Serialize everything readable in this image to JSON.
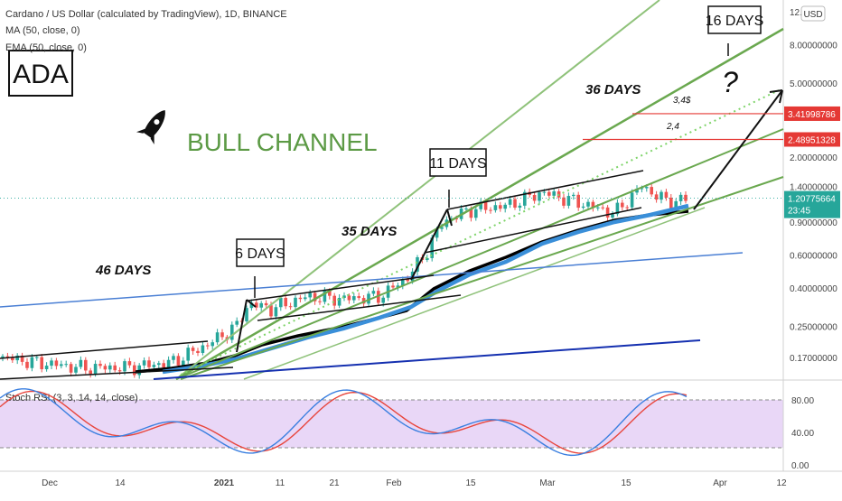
{
  "header": {
    "symbol_line": "Cardano / US Dollar (calculated by TradingView), 1D, BINANCE",
    "ma_line": "MA (50, close, 0)",
    "ema_line": "EMA (50, close, 0)"
  },
  "currency_button": "USD",
  "annotations": {
    "ticker": "ADA",
    "bull_channel": "BULL CHANNEL",
    "days_46": "46 DAYS",
    "days_6": "6 DAYS",
    "days_35": "35 DAYS",
    "days_11": "11 DAYS",
    "days_36": "36 DAYS",
    "days_16": "16 DAYS",
    "question": "?",
    "level_345": "3,4$",
    "level_24": "2,4"
  },
  "colors": {
    "up_candle": "#26a69a",
    "down_candle": "#ef5350",
    "ma_line": "#000000",
    "ema_line": "#3a8fd9",
    "channel_green": "#6aa84f",
    "red_level": "#e53935",
    "stoch_band": "#e9d7f7",
    "stoch_k": "#3a7fe0",
    "stoch_d": "#e8453c"
  },
  "price_axis": {
    "scale": "log",
    "ticks": [
      "12.0",
      "8.00000000",
      "5.00000000",
      "2.00000000",
      "1.40000000",
      "0.90000000",
      "0.60000000",
      "0.40000000",
      "0.25000000",
      "0.17000000"
    ],
    "tick_values": [
      12,
      8,
      5,
      2,
      1.4,
      0.9,
      0.6,
      0.4,
      0.25,
      0.17
    ],
    "levels": [
      {
        "label": "3.41998786",
        "value": 3.42
      },
      {
        "label": "2.48951328",
        "value": 2.49
      }
    ],
    "current": {
      "label": "1.20775664",
      "countdown": "23:45",
      "value": 1.2078
    }
  },
  "stoch_axis": {
    "ticks": [
      "80.00",
      "40.00",
      "0.00"
    ],
    "values": [
      80,
      40,
      0
    ]
  },
  "time_axis": [
    "Dec",
    "14",
    "2021",
    "11",
    "21",
    "Feb",
    "15",
    "Mar",
    "15",
    "Apr",
    "12"
  ],
  "chart_data": {
    "type": "line",
    "title": "Cardano / US Dollar (calculated by TradingView), 1D, BINANCE",
    "yscale": "log",
    "ylim": [
      0.13,
      12
    ],
    "series": [
      {
        "name": "MA (50, close, 0)",
        "x": [
          "Dec",
          "14",
          "2021",
          "11",
          "21",
          "Feb",
          "15",
          "Mar",
          "15"
        ],
        "values": [
          0.14,
          0.15,
          0.17,
          0.22,
          0.27,
          0.34,
          0.6,
          0.85,
          1.02
        ]
      },
      {
        "name": "EMA (50, close, 0)",
        "x": [
          "Dec",
          "14",
          "2021",
          "11",
          "21",
          "Feb",
          "15",
          "Mar",
          "15"
        ],
        "values": [
          0.14,
          0.155,
          0.18,
          0.24,
          0.29,
          0.36,
          0.58,
          0.82,
          1.05
        ]
      }
    ],
    "levels": [
      3.42,
      2.49,
      1.2078
    ],
    "stoch_rsi": {
      "title": "Stoch RSI (3, 3, 14, 14, close)",
      "ylim": [
        0,
        100
      ],
      "bands": [
        20,
        80
      ]
    }
  }
}
